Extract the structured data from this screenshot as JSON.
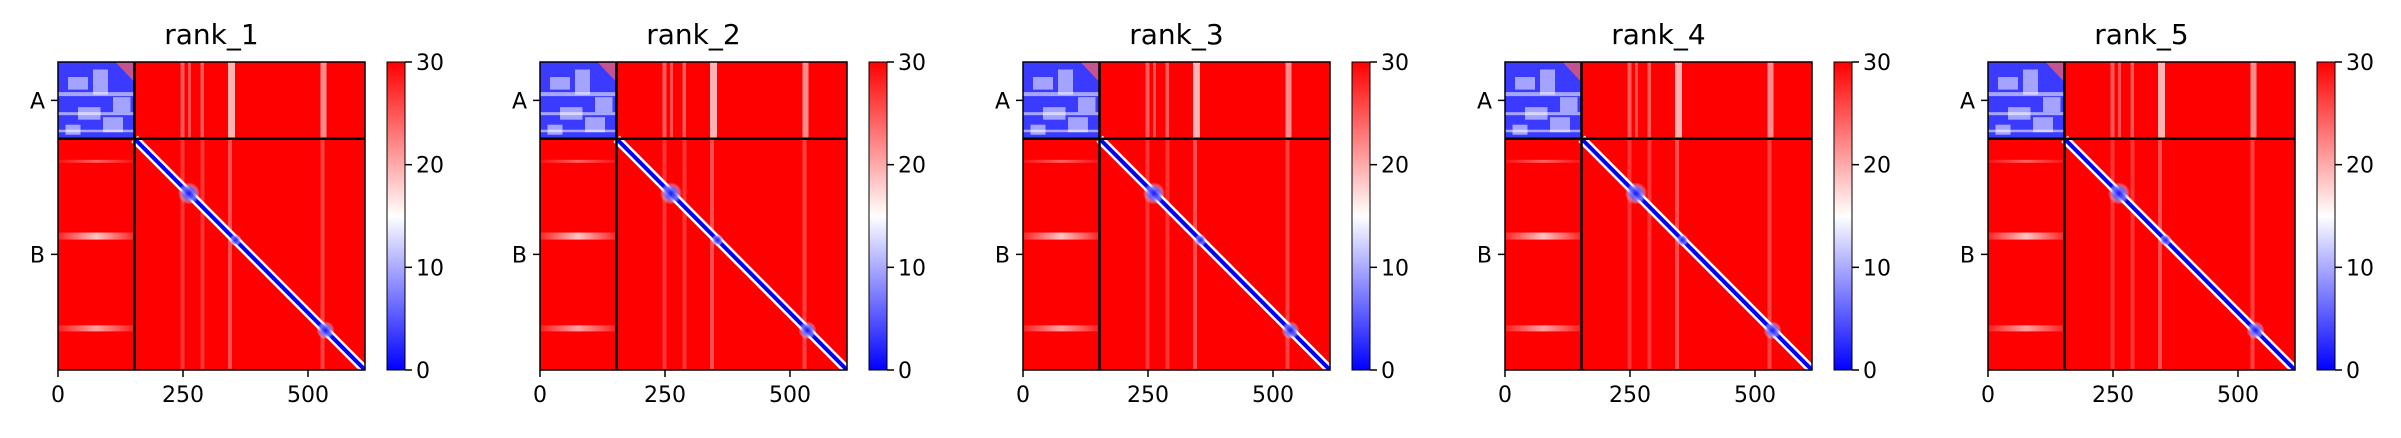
{
  "colors": {
    "low": "#0000ff",
    "mid": "#ffffff",
    "high": "#ff0000",
    "frame": "#000000"
  },
  "chart_data": [
    {
      "type": "heatmap",
      "title": "rank_1",
      "x_ticks": [
        0,
        250,
        500
      ],
      "xlim": [
        0,
        614
      ],
      "y_ticks": [
        "A",
        "B"
      ],
      "chain_boundary": 153,
      "colorbar": {
        "ticks": [
          0,
          10,
          20,
          30
        ],
        "range": [
          0,
          30
        ]
      }
    },
    {
      "type": "heatmap",
      "title": "rank_2",
      "x_ticks": [
        0,
        250,
        500
      ],
      "xlim": [
        0,
        614
      ],
      "y_ticks": [
        "A",
        "B"
      ],
      "chain_boundary": 153,
      "colorbar": {
        "ticks": [
          0,
          10,
          20,
          30
        ],
        "range": [
          0,
          30
        ]
      }
    },
    {
      "type": "heatmap",
      "title": "rank_3",
      "x_ticks": [
        0,
        250,
        500
      ],
      "xlim": [
        0,
        614
      ],
      "y_ticks": [
        "A",
        "B"
      ],
      "chain_boundary": 153,
      "colorbar": {
        "ticks": [
          0,
          10,
          20,
          30
        ],
        "range": [
          0,
          30
        ]
      }
    },
    {
      "type": "heatmap",
      "title": "rank_4",
      "x_ticks": [
        0,
        250,
        500
      ],
      "xlim": [
        0,
        614
      ],
      "y_ticks": [
        "A",
        "B"
      ],
      "chain_boundary": 153,
      "colorbar": {
        "ticks": [
          0,
          10,
          20,
          30
        ],
        "range": [
          0,
          30
        ]
      }
    },
    {
      "type": "heatmap",
      "title": "rank_5",
      "x_ticks": [
        0,
        250,
        500
      ],
      "xlim": [
        0,
        614
      ],
      "y_ticks": [
        "A",
        "B"
      ],
      "chain_boundary": 153,
      "colorbar": {
        "ticks": [
          0,
          10,
          20,
          30
        ],
        "range": [
          0,
          30
        ]
      }
    }
  ]
}
